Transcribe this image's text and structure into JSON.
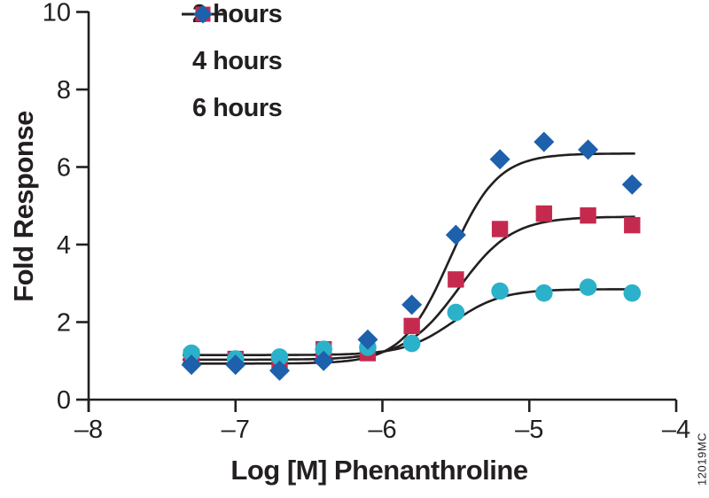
{
  "chart_data": {
    "type": "scatter",
    "title": "",
    "xlabel": "Log [M] Phenanthroline",
    "ylabel": "Fold Response",
    "watermark": "12019MC",
    "xlim": [
      -8,
      -4
    ],
    "ylim": [
      0,
      10
    ],
    "x_ticks": [
      -8,
      -7,
      -6,
      -5,
      -4
    ],
    "x_tick_labels": [
      "–8",
      "–7",
      "–6",
      "–5",
      "–4"
    ],
    "y_ticks": [
      0,
      2,
      4,
      6,
      8,
      10
    ],
    "y_tick_labels": [
      "0",
      "2",
      "4",
      "6",
      "8",
      "10"
    ],
    "grid": false,
    "legend_position": "top-left",
    "axis_color": "#231F20",
    "curve_color": "#231F20",
    "x": [
      -7.3,
      -7.0,
      -6.7,
      -6.4,
      -6.1,
      -5.8,
      -5.5,
      -5.2,
      -4.9,
      -4.6,
      -4.3
    ],
    "series": [
      {
        "name": "2 hours",
        "marker": "circle",
        "color": "#2BB1CA",
        "values": [
          1.2,
          1.05,
          1.1,
          1.3,
          1.35,
          1.45,
          2.25,
          2.8,
          2.75,
          2.9,
          2.75
        ],
        "fit": {
          "model": "4PL",
          "bottom": 1.15,
          "top": 2.85,
          "log_ec50": -5.52,
          "hill": 2.6
        }
      },
      {
        "name": "4 hours",
        "marker": "square",
        "color": "#C52A4E",
        "values": [
          1.1,
          1.05,
          0.9,
          1.3,
          1.2,
          1.9,
          3.1,
          4.4,
          4.8,
          4.75,
          4.5
        ],
        "fit": {
          "model": "4PL",
          "bottom": 1.03,
          "top": 4.72,
          "log_ec50": -5.48,
          "hill": 2.4
        }
      },
      {
        "name": "6 hours",
        "marker": "diamond",
        "color": "#1D60AC",
        "values": [
          0.9,
          0.9,
          0.75,
          1.0,
          1.55,
          2.45,
          4.25,
          6.2,
          6.65,
          6.45,
          5.55
        ],
        "fit": {
          "model": "4PL",
          "bottom": 0.93,
          "top": 6.35,
          "log_ec50": -5.54,
          "hill": 2.7
        }
      }
    ]
  }
}
